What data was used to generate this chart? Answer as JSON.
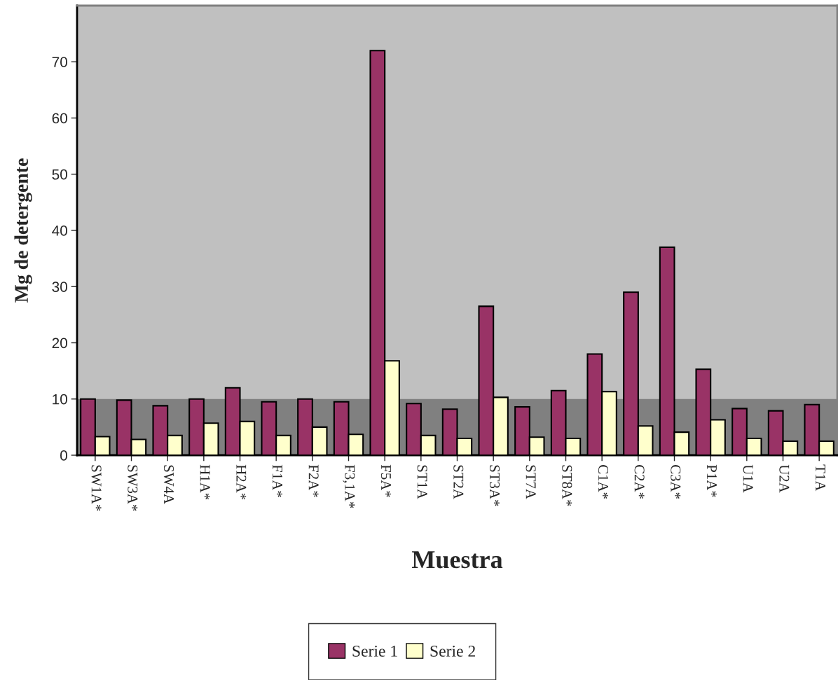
{
  "chart_data": {
    "type": "bar",
    "xlabel": "Muestra",
    "ylabel": "Mg de detergente",
    "categories": [
      "SW1A*",
      "SW3A*",
      "SW4A",
      "H1A*",
      "H2A*",
      "F1A*",
      "F2A*",
      "F3,1A*",
      "F5A*",
      "ST1A",
      "ST2A",
      "ST3A*",
      "ST7A",
      "ST8A*",
      "C1A*",
      "C2A*",
      "C3A*",
      "P1A*",
      "U1A",
      "U2A",
      "T1A"
    ],
    "series": [
      {
        "name": "Serie 1",
        "color": "#993366",
        "values": [
          10,
          9.8,
          8.8,
          10,
          12,
          9.5,
          10,
          9.5,
          72,
          9.2,
          8.2,
          26.5,
          8.6,
          11.5,
          18,
          29,
          37,
          15.3,
          8.3,
          7.9,
          9
        ]
      },
      {
        "name": "Serie 2",
        "color": "#ffffcc",
        "values": [
          3.3,
          2.8,
          3.5,
          5.7,
          6,
          3.5,
          5,
          3.7,
          16.8,
          3.5,
          3,
          10.3,
          3.2,
          3,
          11.3,
          5.2,
          4.1,
          6.3,
          3,
          2.5,
          2.5
        ]
      }
    ],
    "ylim": [
      0,
      80
    ],
    "yticks": [
      0,
      10,
      20,
      30,
      40,
      50,
      60,
      70
    ],
    "bands": [
      {
        "axis": "y",
        "from": 0,
        "to": 10,
        "color": "#808080"
      }
    ],
    "legend": "bottom",
    "grid": false
  }
}
